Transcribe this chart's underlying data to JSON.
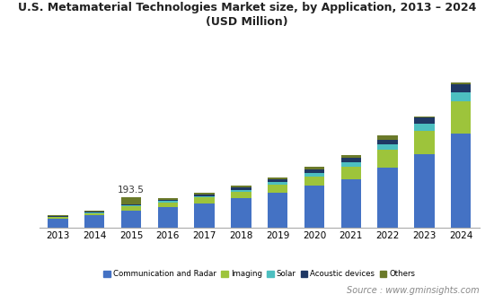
{
  "title": "U.S. Metamaterial Technologies Market size, by Application, 2013 – 2024\n(USD Million)",
  "years": [
    2013,
    2014,
    2015,
    2016,
    2017,
    2018,
    2019,
    2020,
    2021,
    2022,
    2023,
    2024
  ],
  "series": {
    "Communication and Radar": [
      55,
      75,
      105,
      130,
      155,
      185,
      220,
      265,
      310,
      380,
      470,
      600
    ],
    "Imaging": [
      10,
      14,
      28,
      30,
      35,
      42,
      52,
      62,
      80,
      115,
      150,
      210
    ],
    "Solar": [
      4,
      5,
      8,
      9,
      11,
      14,
      18,
      22,
      28,
      36,
      45,
      58
    ],
    "Acoustic devices": [
      4,
      6,
      8,
      9,
      11,
      13,
      17,
      20,
      25,
      30,
      38,
      48
    ],
    "Others": [
      5,
      6,
      45,
      8,
      10,
      12,
      15,
      18,
      22,
      27,
      10,
      13
    ]
  },
  "colors": {
    "Communication and Radar": "#4472C4",
    "Imaging": "#9DC43B",
    "Solar": "#4DBFC0",
    "Acoustic devices": "#1F3864",
    "Others": "#6B7A2A"
  },
  "annotation_year": 2015,
  "annotation_text": "193.5",
  "source_text": "Source : www.gminsights.com",
  "background_color": "#ffffff",
  "plot_background": "#ffffff",
  "footer_background": "#dddddd",
  "ylim": [
    0,
    1050
  ]
}
